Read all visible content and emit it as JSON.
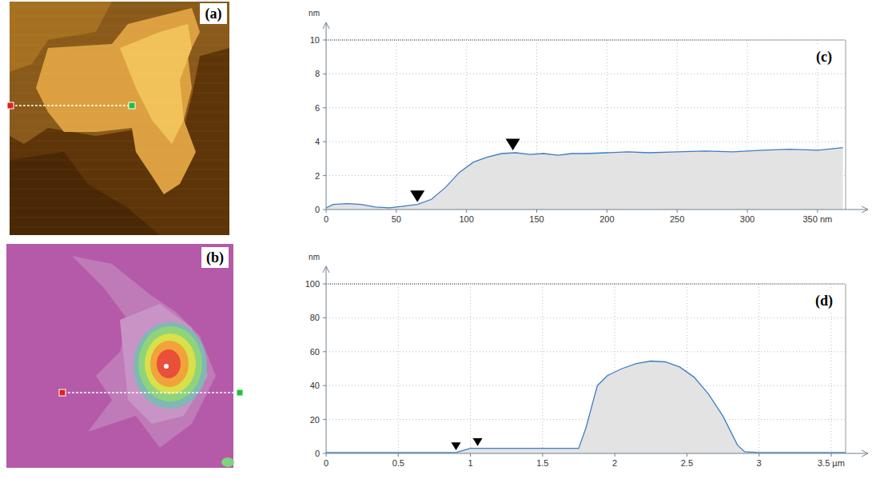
{
  "images": [
    {
      "label": "(a)"
    },
    {
      "label": "(b)"
    }
  ],
  "chart_data": [
    {
      "type": "line",
      "title": "(c)",
      "ylabel": "nm",
      "x": [
        0,
        5,
        15,
        25,
        35,
        45,
        55,
        65,
        75,
        85,
        95,
        105,
        115,
        125,
        135,
        145,
        155,
        165,
        175,
        185,
        200,
        215,
        230,
        250,
        270,
        290,
        310,
        330,
        350,
        368
      ],
      "values": [
        0.1,
        0.3,
        0.35,
        0.3,
        0.15,
        0.1,
        0.2,
        0.3,
        0.6,
        1.3,
        2.2,
        2.8,
        3.1,
        3.3,
        3.35,
        3.25,
        3.3,
        3.2,
        3.3,
        3.3,
        3.35,
        3.4,
        3.35,
        3.4,
        3.45,
        3.4,
        3.5,
        3.55,
        3.5,
        3.65
      ],
      "color": "#3b7dc4",
      "xlim": [
        0,
        370
      ],
      "ylim": [
        0,
        10
      ],
      "xticks": [
        0,
        50,
        100,
        150,
        200,
        250,
        300,
        {
          "value": 350,
          "label": "350 nm"
        }
      ],
      "yticks": [
        0,
        2,
        4,
        6,
        8,
        10
      ],
      "grid": true,
      "cursors": {
        "x": [
          65,
          133
        ],
        "y": [
          0.3,
          3.35
        ]
      }
    },
    {
      "type": "line",
      "title": "(d)",
      "ylabel": "nm",
      "x": [
        0,
        0.5,
        0.9,
        1.0,
        1.2,
        1.5,
        1.75,
        1.8,
        1.88,
        1.95,
        2.05,
        2.15,
        2.25,
        2.35,
        2.45,
        2.55,
        2.65,
        2.75,
        2.85,
        2.9,
        3.0,
        3.5,
        3.6
      ],
      "values": [
        0.5,
        0.5,
        0.5,
        3,
        3,
        3,
        3,
        15,
        40,
        46,
        50,
        53,
        54.5,
        54,
        51,
        45,
        35,
        22,
        5,
        1,
        0.5,
        0.5,
        0.5
      ],
      "color": "#3b7dc4",
      "xlim": [
        0,
        3.6
      ],
      "ylim": [
        0,
        100
      ],
      "xticks": [
        0,
        0.5,
        1,
        1.5,
        2,
        2.5,
        3,
        {
          "value": 3.5,
          "label": "3.5 µm"
        }
      ],
      "yticks": [
        0,
        20,
        40,
        60,
        80,
        100
      ],
      "grid": true,
      "cursors": {
        "x": [
          0.9,
          1.05
        ],
        "y": [
          0.5,
          3
        ]
      }
    }
  ]
}
